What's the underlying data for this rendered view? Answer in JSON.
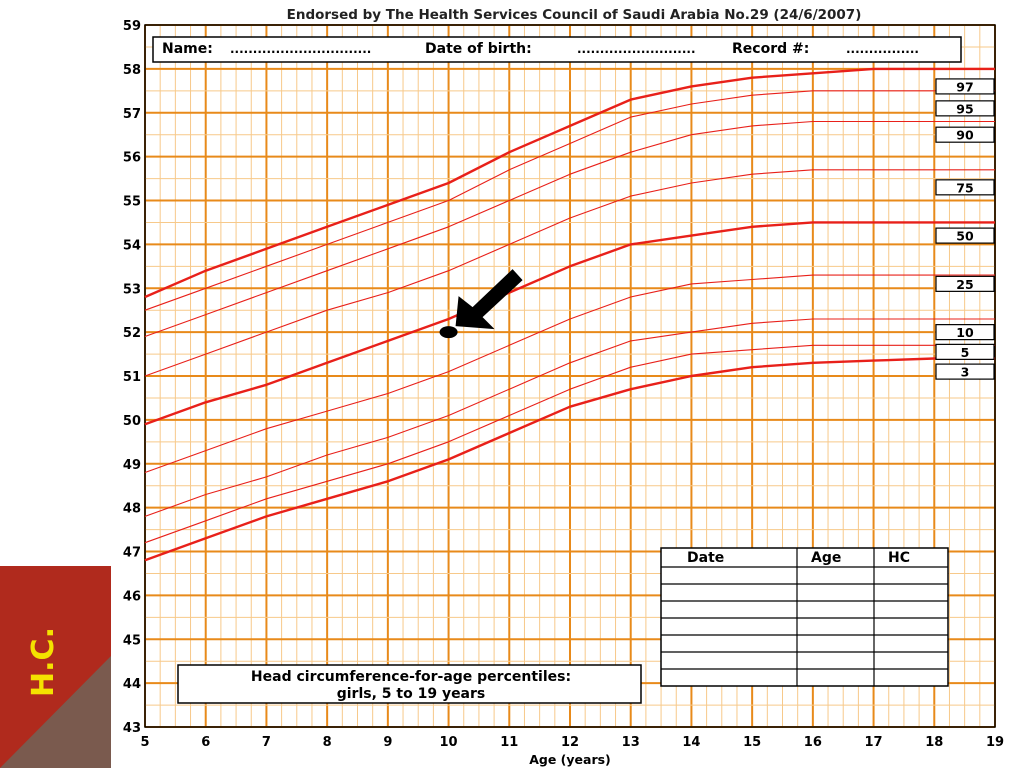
{
  "chart_data": {
    "type": "line",
    "title": "Endorsed by The Health Services Council of Saudi Arabia No.29 (24/6/2007)",
    "header_fields": {
      "name_label": "Name:",
      "name_blank": "...............................",
      "dob_label": "Date of birth:",
      "dob_blank": "..........................",
      "record_label": "Record #:",
      "record_blank": "................"
    },
    "caption_line1": "Head circumference-for-age percentiles:",
    "caption_line2": "girls, 5 to 19 years",
    "xlabel": "Age (years)",
    "ylabel": "",
    "xlim": [
      5,
      19
    ],
    "ylim": [
      43,
      59
    ],
    "x_ticks": [
      "5",
      "6",
      "7",
      "8",
      "9",
      "10",
      "11",
      "12",
      "13",
      "14",
      "15",
      "16",
      "17",
      "18",
      "19"
    ],
    "y_ticks": [
      "43",
      "44",
      "45",
      "46",
      "47",
      "48",
      "49",
      "50",
      "51",
      "52",
      "53",
      "54",
      "55",
      "56",
      "57",
      "58",
      "59"
    ],
    "grid": true,
    "colors": {
      "grid_major": "#e88a1a",
      "grid_minor": "#f7c98a",
      "curve": "#e8201a",
      "side_tab": "#b02a1d",
      "side_tab_dark": "#7a5a4e",
      "side_label": "#f4e200"
    },
    "x": [
      5,
      6,
      7,
      8,
      9,
      10,
      11,
      12,
      13,
      14,
      15,
      16,
      17,
      18,
      19
    ],
    "series": [
      {
        "name": "97",
        "bold": true,
        "values": [
          52.8,
          53.4,
          53.9,
          54.4,
          54.9,
          55.4,
          56.1,
          56.7,
          57.3,
          57.6,
          57.8,
          57.9,
          58.0,
          58.0,
          58.0
        ]
      },
      {
        "name": "95",
        "bold": false,
        "values": [
          52.5,
          53.0,
          53.5,
          54.0,
          54.5,
          55.0,
          55.7,
          56.3,
          56.9,
          57.2,
          57.4,
          57.5,
          57.5,
          57.5,
          57.5
        ]
      },
      {
        "name": "90",
        "bold": false,
        "values": [
          51.9,
          52.4,
          52.9,
          53.4,
          53.9,
          54.4,
          55.0,
          55.6,
          56.1,
          56.5,
          56.7,
          56.8,
          56.8,
          56.8,
          56.8
        ]
      },
      {
        "name": "75",
        "bold": false,
        "values": [
          51.0,
          51.5,
          52.0,
          52.5,
          52.9,
          53.4,
          54.0,
          54.6,
          55.1,
          55.4,
          55.6,
          55.7,
          55.7,
          55.7,
          55.7
        ]
      },
      {
        "name": "50",
        "bold": true,
        "values": [
          49.9,
          50.4,
          50.8,
          51.3,
          51.8,
          52.3,
          52.9,
          53.5,
          54.0,
          54.2,
          54.4,
          54.5,
          54.5,
          54.5,
          54.5
        ]
      },
      {
        "name": "25",
        "bold": false,
        "values": [
          48.8,
          49.3,
          49.8,
          50.2,
          50.6,
          51.1,
          51.7,
          52.3,
          52.8,
          53.1,
          53.2,
          53.3,
          53.3,
          53.3,
          53.3
        ]
      },
      {
        "name": "10",
        "bold": false,
        "values": [
          47.8,
          48.3,
          48.7,
          49.2,
          49.6,
          50.1,
          50.7,
          51.3,
          51.8,
          52.0,
          52.2,
          52.3,
          52.3,
          52.3,
          52.3
        ]
      },
      {
        "name": "5",
        "bold": false,
        "values": [
          47.2,
          47.7,
          48.2,
          48.6,
          49.0,
          49.5,
          50.1,
          50.7,
          51.2,
          51.5,
          51.6,
          51.7,
          51.7,
          51.7,
          51.7
        ]
      },
      {
        "name": "3",
        "bold": true,
        "values": [
          46.8,
          47.3,
          47.8,
          48.2,
          48.6,
          49.1,
          49.7,
          50.3,
          50.7,
          51.0,
          51.2,
          51.3,
          51.35,
          51.4,
          51.4
        ]
      }
    ],
    "marked_point": {
      "x": 10,
      "y": 52.0
    },
    "record_table": {
      "columns": [
        "Date",
        "Age",
        "HC"
      ],
      "blank_rows": 7
    }
  },
  "side_tab": {
    "label": "H.C."
  }
}
